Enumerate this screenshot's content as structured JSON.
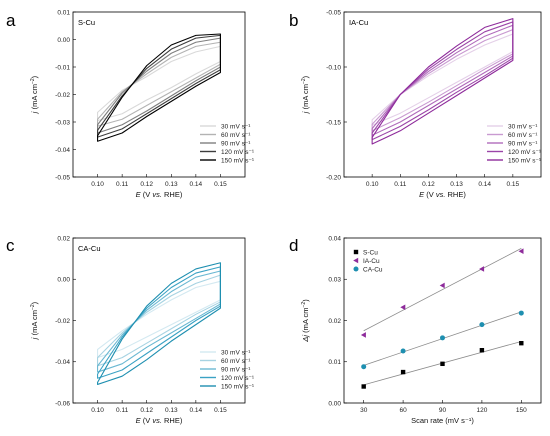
{
  "figure": {
    "colors": {
      "axis": "#000000",
      "s_cu_line": "#000000",
      "ia_cu_line": "#8e2b9b",
      "ca_cu_line": "#1e8fb0",
      "fit_line": "#8c8c8c"
    }
  },
  "chart_data": [
    {
      "id": "a",
      "panel_label": "a",
      "title": "S-Cu",
      "type": "line",
      "xlabel_main": "E",
      "xlabel_mid": " (V ",
      "xlabel_italic": "vs.",
      "xlabel_end": " RHE)",
      "ylabel_main": "j",
      "ylabel_rest": " (mA cm",
      "ylabel_sup": "−2",
      "ylabel_close": ")",
      "xlim": [
        0.09,
        0.16
      ],
      "ylim": [
        -0.05,
        0.01
      ],
      "xticks": [
        "0.10",
        "0.11",
        "0.12",
        "0.13",
        "0.14",
        "0.15"
      ],
      "yticks": [
        "0.01",
        "0.00",
        "-0.01",
        "-0.02",
        "-0.03",
        "-0.04",
        "-0.05"
      ],
      "x_range": [
        0.1,
        0.15
      ],
      "legend_position": "bottom-right",
      "series": [
        {
          "name": "30 mV s⁻¹",
          "color": "#d9d9d9",
          "upper": [
            -0.0265,
            -0.0185,
            -0.0135,
            -0.008,
            -0.0045,
            -0.0025
          ],
          "lower": [
            -0.0295,
            -0.027,
            -0.022,
            -0.0175,
            -0.0125,
            -0.008
          ]
        },
        {
          "name": "60 mV s⁻¹",
          "color": "#b3b3b3",
          "upper": [
            -0.029,
            -0.019,
            -0.0125,
            -0.0065,
            -0.0025,
            -0.001
          ],
          "lower": [
            -0.0315,
            -0.029,
            -0.024,
            -0.019,
            -0.014,
            -0.009
          ]
        },
        {
          "name": "90 mV s⁻¹",
          "color": "#7f7f7f",
          "upper": [
            -0.031,
            -0.0195,
            -0.0115,
            -0.005,
            -0.001,
            0.0005
          ],
          "lower": [
            -0.034,
            -0.031,
            -0.026,
            -0.0205,
            -0.015,
            -0.01
          ]
        },
        {
          "name": "120 mV s⁻¹",
          "color": "#3d3d3d",
          "upper": [
            -0.033,
            -0.0205,
            -0.0105,
            -0.0035,
            0.0005,
            0.0015
          ],
          "lower": [
            -0.0355,
            -0.0325,
            -0.027,
            -0.0215,
            -0.016,
            -0.011
          ]
        },
        {
          "name": "150 mV s⁻¹",
          "color": "#000000",
          "upper": [
            -0.035,
            -0.021,
            -0.0095,
            -0.002,
            0.0015,
            0.002
          ],
          "lower": [
            -0.037,
            -0.034,
            -0.028,
            -0.0225,
            -0.017,
            -0.012
          ]
        }
      ]
    },
    {
      "id": "b",
      "panel_label": "b",
      "title": "IA-Cu",
      "type": "line",
      "xlabel_main": "E",
      "xlabel_mid": " (V ",
      "xlabel_italic": "vs.",
      "xlabel_end": " RHE)",
      "ylabel_main": "j",
      "ylabel_rest": " (mA cm",
      "ylabel_sup": "−2",
      "ylabel_close": ")",
      "xlim": [
        0.09,
        0.16
      ],
      "ylim": [
        -0.2,
        -0.05
      ],
      "xticks": [
        "0.10",
        "0.11",
        "0.12",
        "0.13",
        "0.14",
        "0.15"
      ],
      "yticks": [
        "-0.05",
        "-0.10",
        "-0.15",
        "-0.20"
      ],
      "x_range": [
        0.1,
        0.15
      ],
      "legend_position": "bottom-right",
      "series": [
        {
          "name": "30 mV s⁻¹",
          "color": "#e4d0e8",
          "upper": [
            -0.148,
            -0.125,
            -0.108,
            -0.093,
            -0.08,
            -0.07
          ],
          "lower": [
            -0.153,
            -0.142,
            -0.128,
            -0.114,
            -0.1,
            -0.086
          ]
        },
        {
          "name": "60 mV s⁻¹",
          "color": "#c99ad1",
          "upper": [
            -0.152,
            -0.125,
            -0.106,
            -0.09,
            -0.076,
            -0.066
          ],
          "lower": [
            -0.158,
            -0.146,
            -0.132,
            -0.117,
            -0.102,
            -0.088
          ]
        },
        {
          "name": "90 mV s⁻¹",
          "color": "#b06bbb",
          "upper": [
            -0.156,
            -0.125,
            -0.104,
            -0.087,
            -0.072,
            -0.062
          ],
          "lower": [
            -0.162,
            -0.15,
            -0.135,
            -0.12,
            -0.105,
            -0.09
          ]
        },
        {
          "name": "120 mV s⁻¹",
          "color": "#9b45a8",
          "upper": [
            -0.16,
            -0.125,
            -0.102,
            -0.084,
            -0.068,
            -0.059
          ],
          "lower": [
            -0.166,
            -0.154,
            -0.139,
            -0.123,
            -0.108,
            -0.092
          ]
        },
        {
          "name": "150 mV s⁻¹",
          "color": "#8e2b9b",
          "upper": [
            -0.164,
            -0.125,
            -0.1,
            -0.081,
            -0.064,
            -0.056
          ],
          "lower": [
            -0.17,
            -0.158,
            -0.142,
            -0.126,
            -0.11,
            -0.094
          ]
        }
      ]
    },
    {
      "id": "c",
      "panel_label": "c",
      "title": "CA-Cu",
      "type": "line",
      "xlabel_main": "E",
      "xlabel_mid": " (V ",
      "xlabel_italic": "vs.",
      "xlabel_end": " RHE)",
      "ylabel_main": "j",
      "ylabel_rest": " (mA cm",
      "ylabel_sup": "−2",
      "ylabel_close": ")",
      "xlim": [
        0.09,
        0.16
      ],
      "ylim": [
        -0.06,
        0.02
      ],
      "xticks": [
        "0.10",
        "0.11",
        "0.12",
        "0.13",
        "0.14",
        "0.15"
      ],
      "yticks": [
        "0.02",
        "0.00",
        "-0.02",
        "-0.04",
        "-0.06"
      ],
      "x_range": [
        0.1,
        0.15
      ],
      "legend_position": "bottom-right",
      "series": [
        {
          "name": "30 mV s⁻¹",
          "color": "#d3e9f1",
          "upper": [
            -0.034,
            -0.025,
            -0.017,
            -0.01,
            -0.004,
            -0.001
          ],
          "lower": [
            -0.038,
            -0.034,
            -0.028,
            -0.022,
            -0.016,
            -0.01
          ]
        },
        {
          "name": "60 mV s⁻¹",
          "color": "#a7d3e2",
          "upper": [
            -0.038,
            -0.026,
            -0.016,
            -0.008,
            -0.002,
            0.002
          ],
          "lower": [
            -0.042,
            -0.038,
            -0.031,
            -0.024,
            -0.017,
            -0.011
          ]
        },
        {
          "name": "90 mV s⁻¹",
          "color": "#6bb8d2",
          "upper": [
            -0.042,
            -0.027,
            -0.015,
            -0.006,
            0.001,
            0.004
          ],
          "lower": [
            -0.045,
            -0.041,
            -0.033,
            -0.026,
            -0.019,
            -0.012
          ]
        },
        {
          "name": "120 mV s⁻¹",
          "color": "#3aa2c4",
          "upper": [
            -0.046,
            -0.028,
            -0.014,
            -0.004,
            0.003,
            0.006
          ],
          "lower": [
            -0.048,
            -0.044,
            -0.036,
            -0.028,
            -0.02,
            -0.013
          ]
        },
        {
          "name": "150 mV s⁻¹",
          "color": "#1e8fb0",
          "upper": [
            -0.05,
            -0.029,
            -0.013,
            -0.002,
            0.005,
            0.008
          ],
          "lower": [
            -0.051,
            -0.047,
            -0.039,
            -0.03,
            -0.022,
            -0.014
          ]
        }
      ]
    },
    {
      "id": "d",
      "panel_label": "d",
      "type": "scatter",
      "xlabel": "Scan rate (mV s⁻¹)",
      "ylabel_main": "Δj",
      "ylabel_rest": " (mA cm",
      "ylabel_sup": "−2",
      "ylabel_close": ")",
      "xlim": [
        15,
        165
      ],
      "ylim": [
        0,
        0.04
      ],
      "xticks": [
        "30",
        "60",
        "90",
        "120",
        "150"
      ],
      "yticks": [
        "0.00",
        "0.01",
        "0.02",
        "0.03",
        "0.04"
      ],
      "x": [
        30,
        60,
        90,
        120,
        150
      ],
      "legend_position": "top-left",
      "series": [
        {
          "name": "S-Cu",
          "marker": "square",
          "color": "#000000",
          "values": [
            0.004,
            0.0075,
            0.0095,
            0.0128,
            0.0145
          ]
        },
        {
          "name": "IA-Cu",
          "marker": "triangle-left",
          "color": "#8e2b9b",
          "values": [
            0.0165,
            0.0232,
            0.0285,
            0.0325,
            0.0368
          ]
        },
        {
          "name": "CA-Cu",
          "marker": "circle",
          "color": "#1e8fb0",
          "values": [
            0.0088,
            0.0126,
            0.0158,
            0.019,
            0.0218
          ]
        }
      ]
    }
  ]
}
